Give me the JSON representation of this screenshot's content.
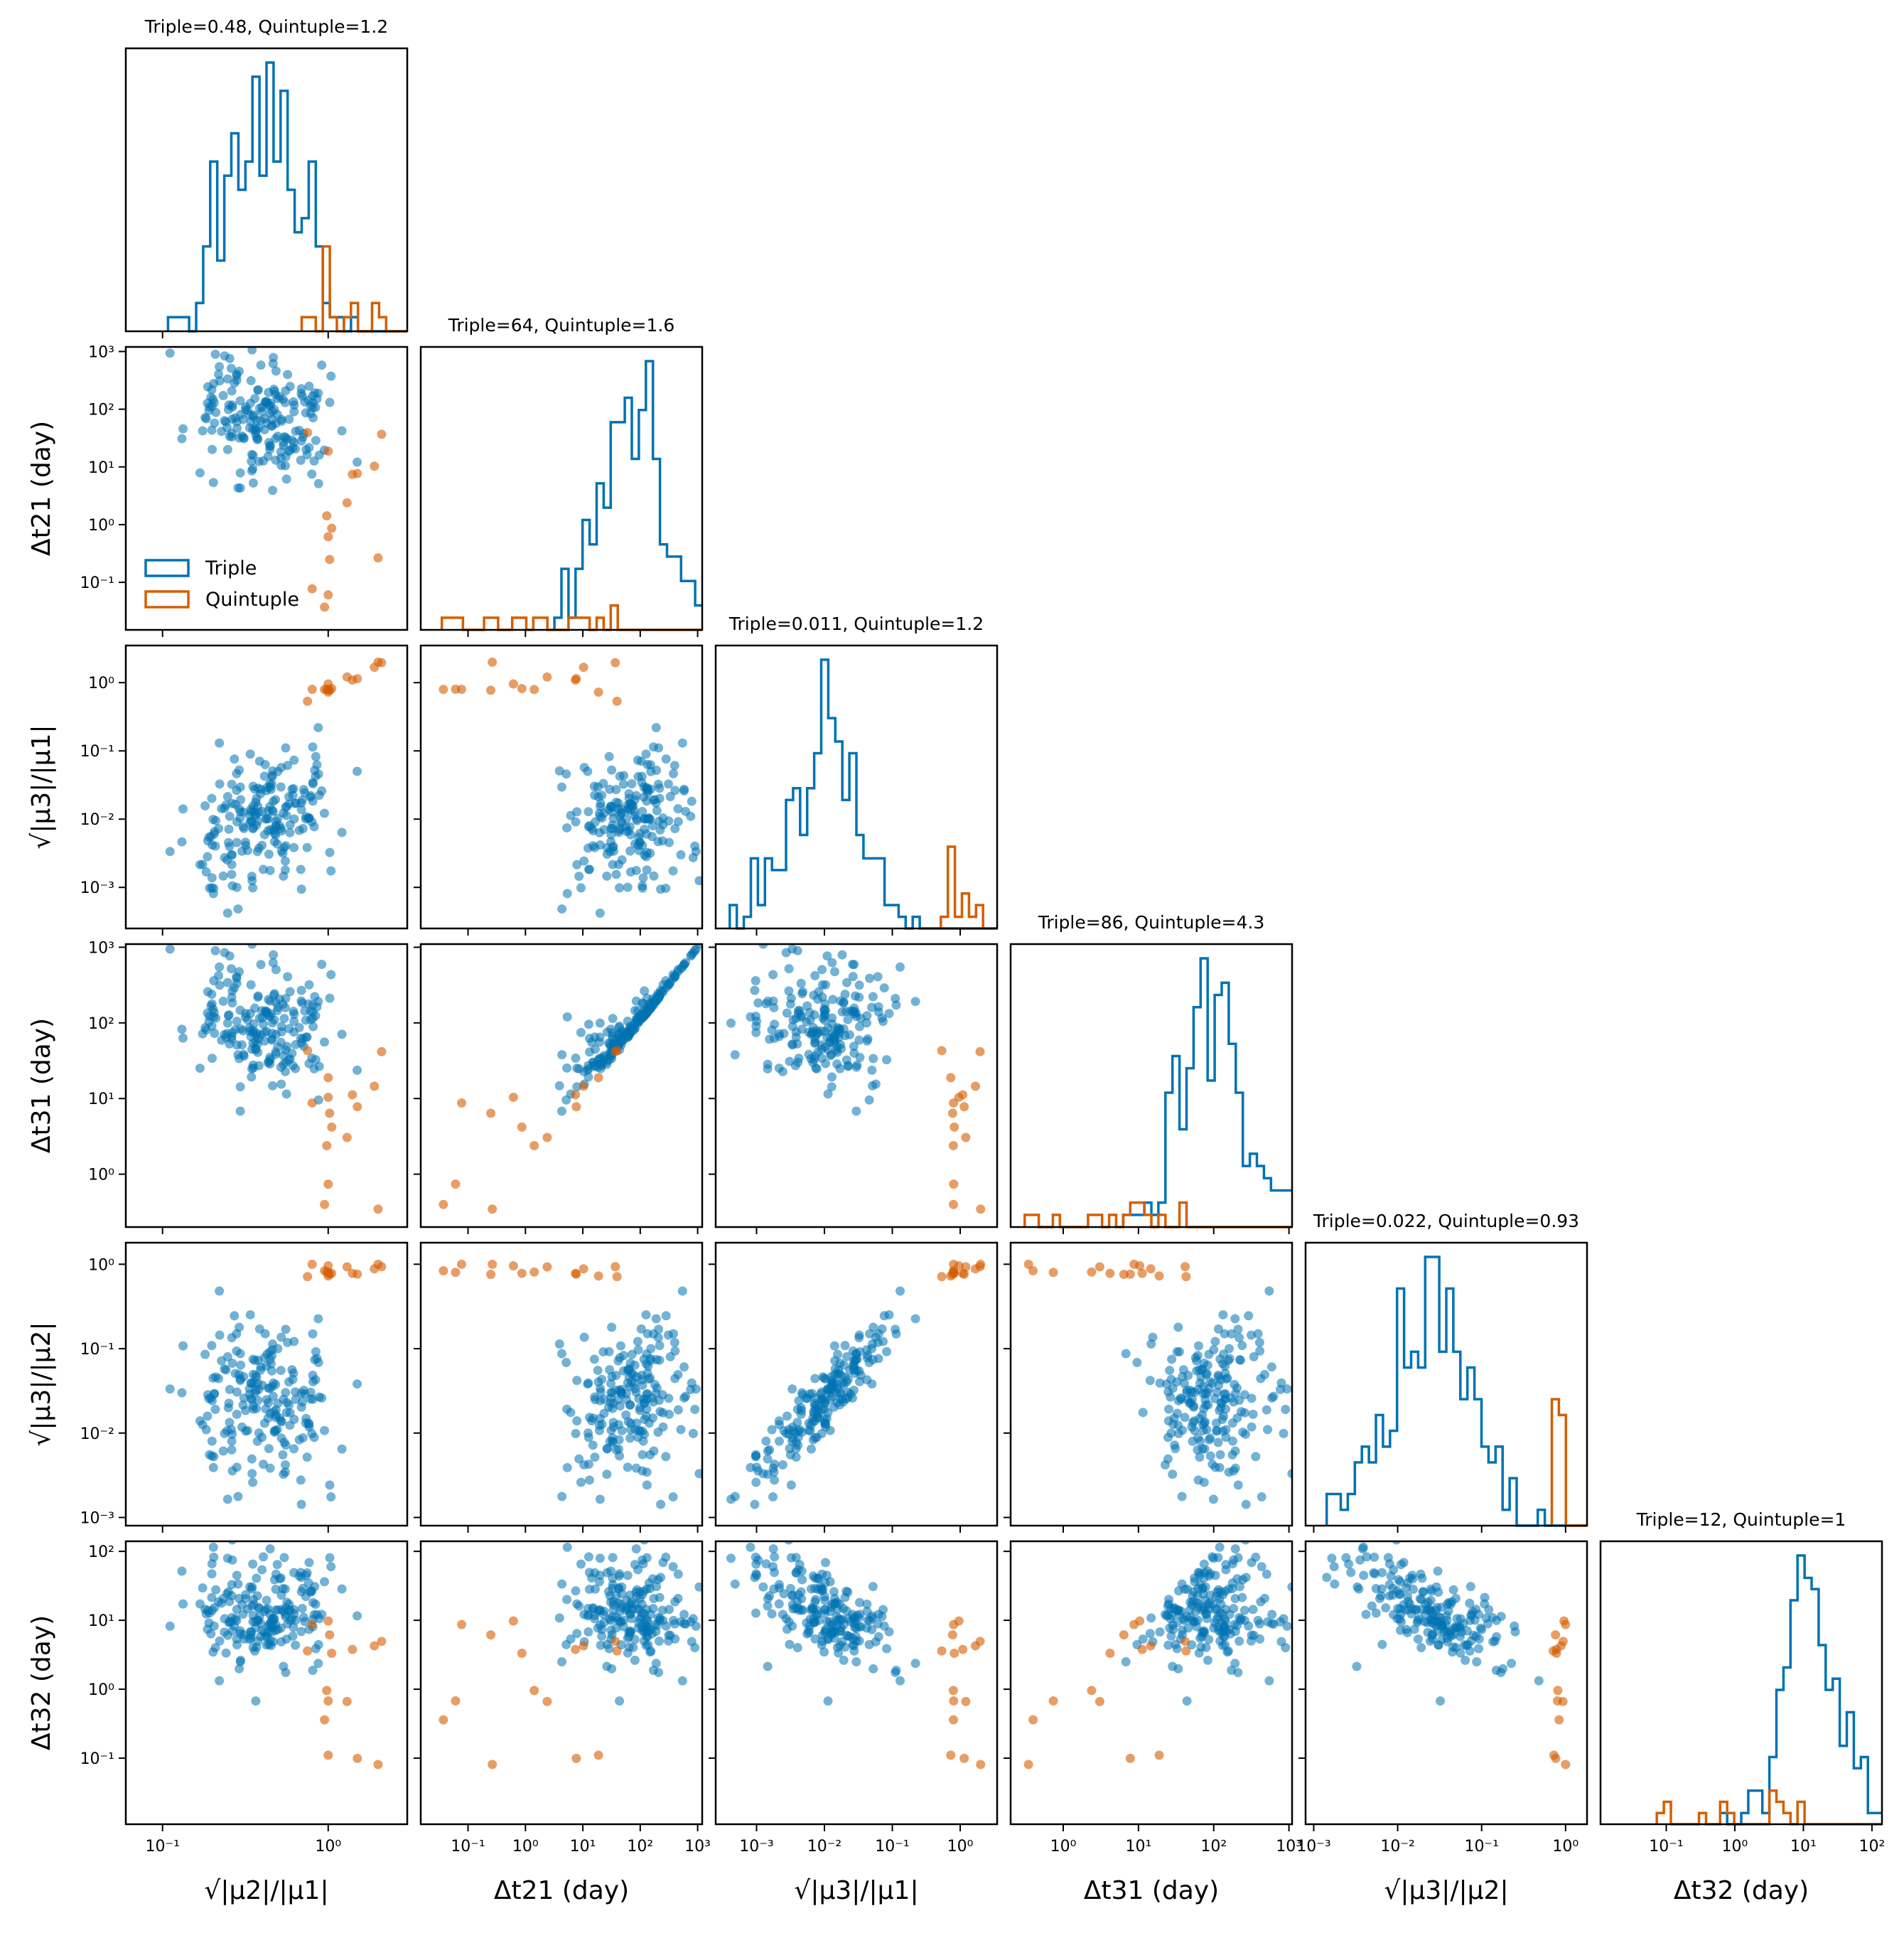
{
  "chart_data": {
    "type": "scatter",
    "description_kind": "corner-plot",
    "variables": [
      {
        "key": "m21",
        "label": "√|μ2|/|μ1|",
        "scale": "log",
        "lim": [
          0.06,
          3.0
        ],
        "ticks": [
          {
            "v": 0.1,
            "t": "10⁻¹"
          },
          {
            "v": 1,
            "t": "10⁰"
          }
        ]
      },
      {
        "key": "dt21",
        "label": "Δt21 (day)",
        "scale": "log",
        "lim": [
          0.015,
          1200
        ],
        "ticks": [
          {
            "v": 0.1,
            "t": "10⁻¹"
          },
          {
            "v": 1,
            "t": "10⁰"
          },
          {
            "v": 10,
            "t": "10¹"
          },
          {
            "v": 100,
            "t": "10²"
          },
          {
            "v": 1000,
            "t": "10³"
          }
        ]
      },
      {
        "key": "m31",
        "label": "√|μ3|/|μ1|",
        "scale": "log",
        "lim": [
          0.00025,
          3.5
        ],
        "ticks": [
          {
            "v": 0.001,
            "t": "10⁻³"
          },
          {
            "v": 0.01,
            "t": "10⁻²"
          },
          {
            "v": 0.1,
            "t": "10⁻¹"
          },
          {
            "v": 1,
            "t": "10⁰"
          }
        ]
      },
      {
        "key": "dt31",
        "label": "Δt31 (day)",
        "scale": "log",
        "lim": [
          0.2,
          1100
        ],
        "ticks": [
          {
            "v": 1,
            "t": "10⁰"
          },
          {
            "v": 10,
            "t": "10¹"
          },
          {
            "v": 100,
            "t": "10²"
          },
          {
            "v": 1000,
            "t": "10³"
          }
        ]
      },
      {
        "key": "m32",
        "label": "√|μ3|/|μ2|",
        "scale": "log",
        "lim": [
          0.0008,
          1.8
        ],
        "ticks": [
          {
            "v": 0.001,
            "t": "10⁻³"
          },
          {
            "v": 0.01,
            "t": "10⁻²"
          },
          {
            "v": 0.1,
            "t": "10⁻¹"
          },
          {
            "v": 1,
            "t": "10⁰"
          }
        ]
      },
      {
        "key": "dt32",
        "label": "Δt32 (day)",
        "scale": "log",
        "lim": [
          0.011,
          140
        ],
        "ticks": [
          {
            "v": 0.1,
            "t": "10⁻¹"
          },
          {
            "v": 1,
            "t": "10⁰"
          },
          {
            "v": 10,
            "t": "10¹"
          },
          {
            "v": 100,
            "t": "10²"
          }
        ]
      }
    ],
    "diagonal_titles": [
      "Triple=0.48, Quintuple=1.2",
      "Triple=64, Quintuple=1.6",
      "Triple=0.011, Quintuple=1.2",
      "Triple=86, Quintuple=4.3",
      "Triple=0.022, Quintuple=0.93",
      "Triple=12, Quintuple=1"
    ],
    "series": [
      {
        "name": "Triple",
        "color": "#0072b2",
        "n_points": 200
      },
      {
        "name": "Quintuple",
        "color": "#d55e00",
        "n_points": 15
      }
    ],
    "legend": {
      "location": "lower-left of panel (row 2, col 1)",
      "entries": [
        "Triple",
        "Quintuple"
      ]
    },
    "scatter_alpha": 0.55
  }
}
